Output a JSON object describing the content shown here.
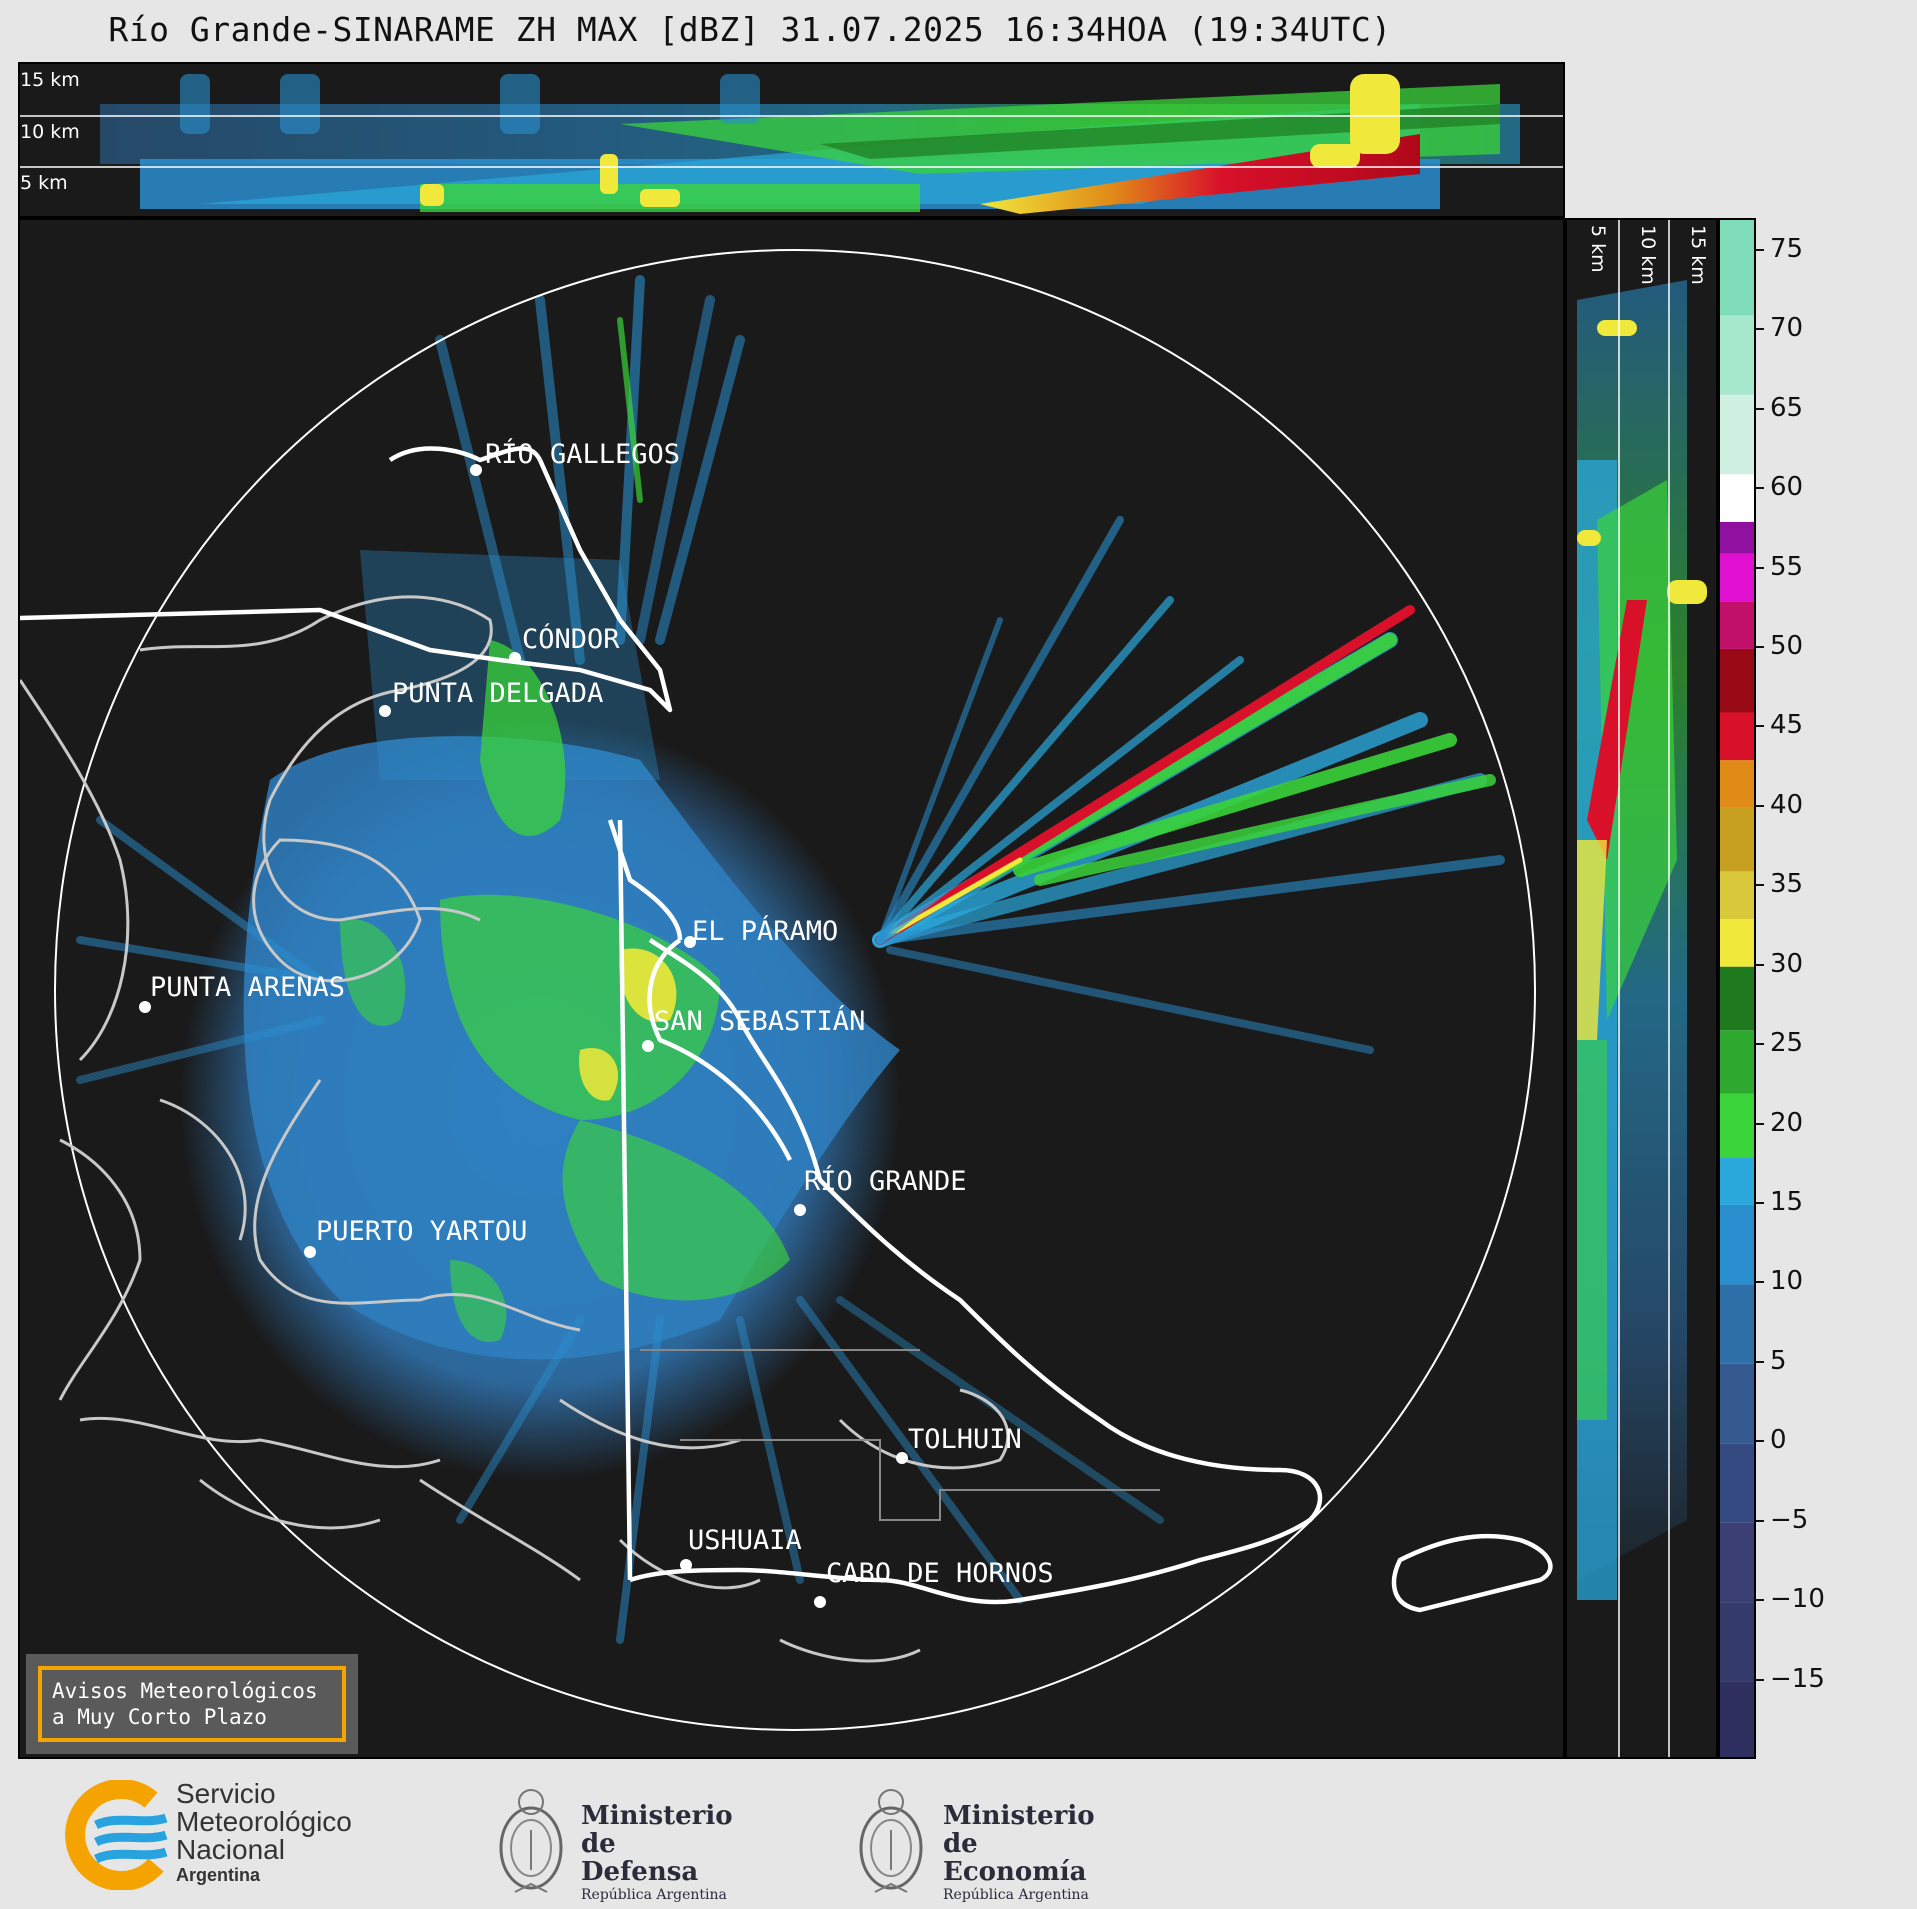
{
  "title": "Río Grande-SINARAME ZH MAX [dBZ] 31.07.2025 16:34HOA (19:34UTC)",
  "height_labels": {
    "top": [
      "15 km",
      "10 km",
      "5 km"
    ],
    "side": [
      "5 km",
      "10 km",
      "15 km"
    ]
  },
  "cities": [
    {
      "name": "RÍO GALLEGOS"
    },
    {
      "name": "CÓNDOR"
    },
    {
      "name": "PUNTA DELGADA"
    },
    {
      "name": "PUNTA ARENAS"
    },
    {
      "name": "EL PÁRAMO"
    },
    {
      "name": "SAN SEBASTIÁN"
    },
    {
      "name": "RÍO GRANDE"
    },
    {
      "name": "PUERTO YARTOU"
    },
    {
      "name": "TOLHUIN"
    },
    {
      "name": "USHUAIA"
    },
    {
      "name": "CABO DE HORNOS"
    }
  ],
  "colorbar": {
    "unit": "dBZ",
    "ticks": [
      "75",
      "70",
      "65",
      "60",
      "55",
      "50",
      "45",
      "40",
      "35",
      "30",
      "25",
      "20",
      "15",
      "10",
      "5",
      "0",
      "−5",
      "−10",
      "−15"
    ],
    "colors": {
      "deep_blue": "#3b3f73",
      "blue": "#2f6fa8",
      "light_blue": "#2aa8dc",
      "green": "#3ad33a",
      "dark_green": "#1f7a1f",
      "yellow": "#f0e83a",
      "orange": "#e08a18",
      "red": "#d8102a",
      "magenta": "#e010d0",
      "white": "#ffffff",
      "mint": "#7fdcb8"
    }
  },
  "avisos": {
    "line1": "Avisos Meteorológicos",
    "line2": "a Muy Corto Plazo"
  },
  "footer": {
    "smn": {
      "line1": "Servicio",
      "line2": "Meteorológico",
      "line3": "Nacional",
      "line4": "Argentina"
    },
    "defensa": {
      "line1": "Ministerio",
      "line2": "de Defensa",
      "line3": "República Argentina"
    },
    "economia": {
      "line1": "Ministerio",
      "line2": "de Economía",
      "line3": "República Argentina"
    }
  }
}
